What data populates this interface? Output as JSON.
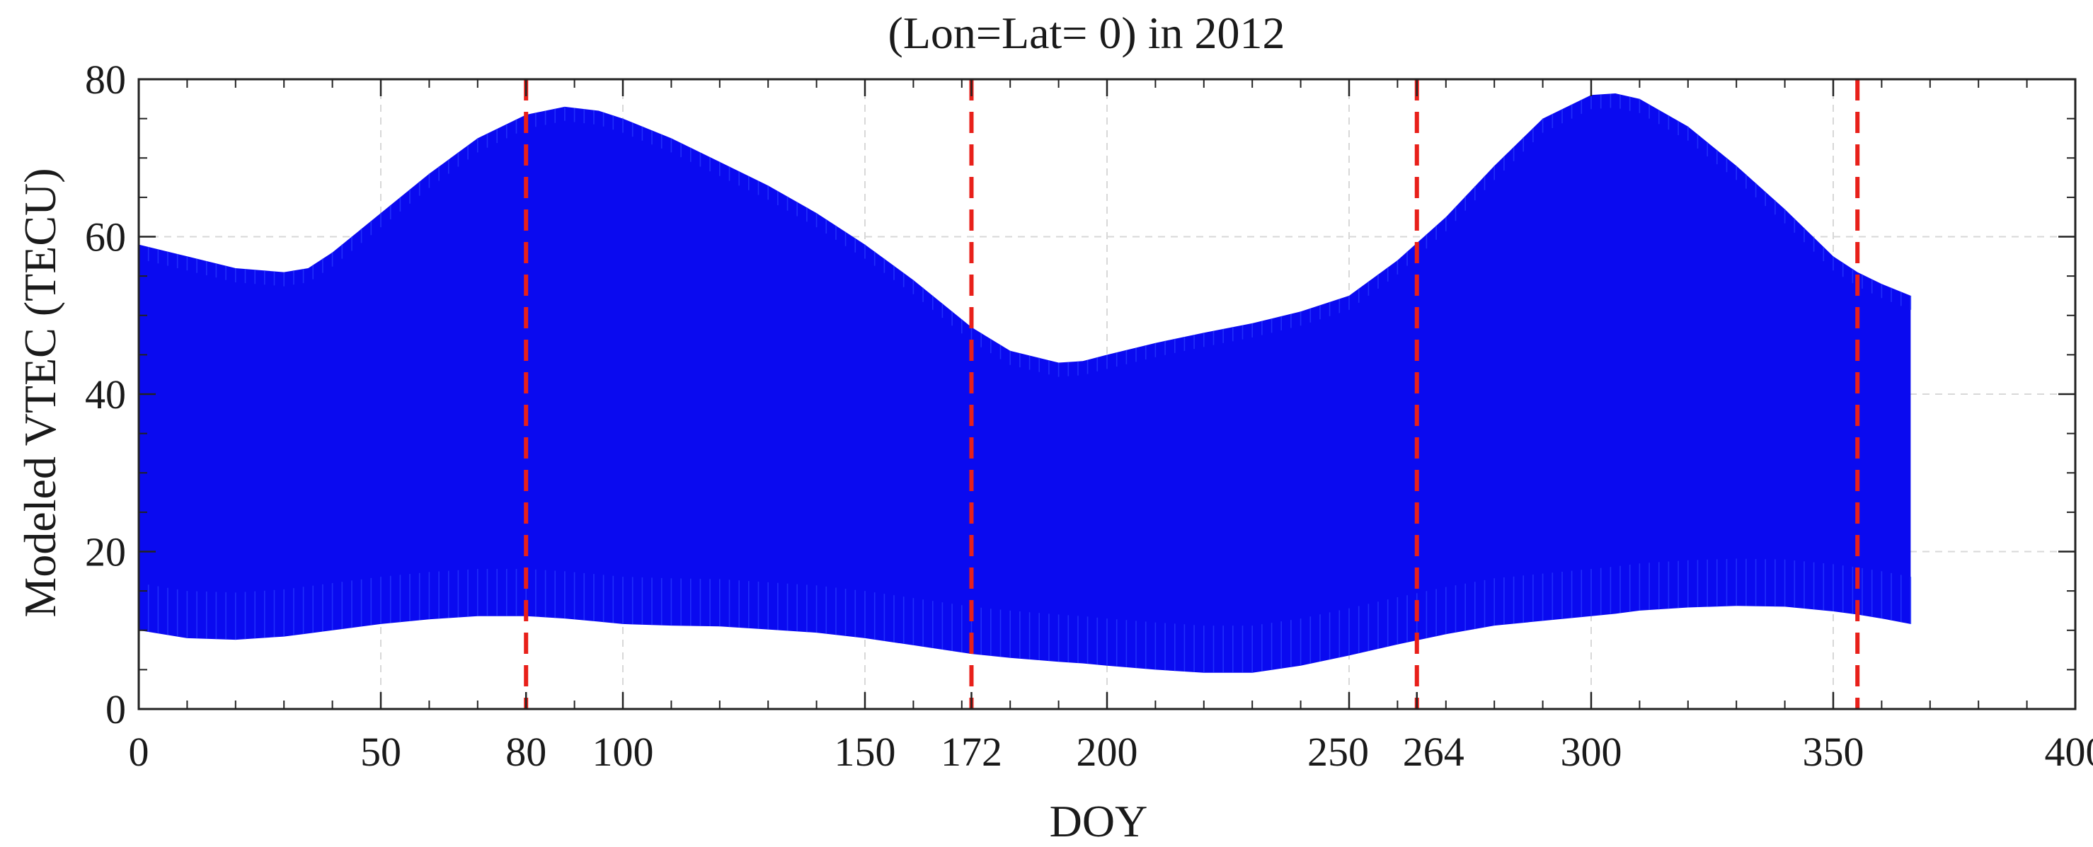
{
  "chart_data": {
    "type": "area",
    "title": "(Lon=Lat= 0) in  2012",
    "xlabel": "DOY",
    "ylabel": "Modeled VTEC (TECU)",
    "xlim": [
      0,
      400
    ],
    "ylim": [
      0,
      80
    ],
    "xticks": [
      0,
      50,
      80,
      100,
      150,
      172,
      200,
      250,
      264,
      300,
      350,
      400
    ],
    "xtick_labels": [
      "0",
      "50",
      "80",
      "100",
      "150",
      "172",
      "200",
      "250",
      "264",
      "300",
      "350",
      "400"
    ],
    "yticks": [
      0,
      20,
      40,
      60,
      80
    ],
    "ytick_labels": [
      "0",
      "20",
      "40",
      "60",
      "80"
    ],
    "grid": true,
    "series_color": "#0a0af0",
    "vline_color": "#e8201a",
    "vlines": [
      80,
      172,
      264,
      355
    ],
    "series": [
      {
        "x": [
          0,
          10,
          20,
          30,
          35,
          40,
          50,
          60,
          70,
          80,
          88,
          95,
          100,
          110,
          120,
          130,
          140,
          150,
          160,
          172,
          180,
          190,
          195,
          200,
          210,
          220,
          230,
          240,
          250,
          260,
          270,
          280,
          290,
          300,
          305,
          310,
          320,
          330,
          340,
          350,
          355,
          360,
          366
        ],
        "upper": [
          59,
          57.5,
          56,
          55.5,
          56,
          58,
          63,
          68,
          72.5,
          75.5,
          76.5,
          76,
          75,
          72.5,
          69.5,
          66.5,
          63,
          59,
          54.5,
          48.5,
          45.5,
          44,
          44.2,
          45,
          46.5,
          47.8,
          49,
          50.5,
          52.5,
          57,
          62.5,
          69,
          75,
          78,
          78.2,
          77.5,
          74,
          69,
          63.5,
          57.5,
          55.5,
          54,
          52.5
        ],
        "lower": [
          10,
          9,
          8.8,
          9.2,
          9.6,
          10,
          10.8,
          11.4,
          11.8,
          11.8,
          11.5,
          11.1,
          10.8,
          10.6,
          10.5,
          10.1,
          9.7,
          9.0,
          8.1,
          7.0,
          6.5,
          6.0,
          5.8,
          5.5,
          5.0,
          4.6,
          4.6,
          5.5,
          6.8,
          8.2,
          9.5,
          10.6,
          11.2,
          11.8,
          12.1,
          12.5,
          12.9,
          13.1,
          13.0,
          12.4,
          12.0,
          11.5,
          10.8
        ]
      }
    ]
  }
}
